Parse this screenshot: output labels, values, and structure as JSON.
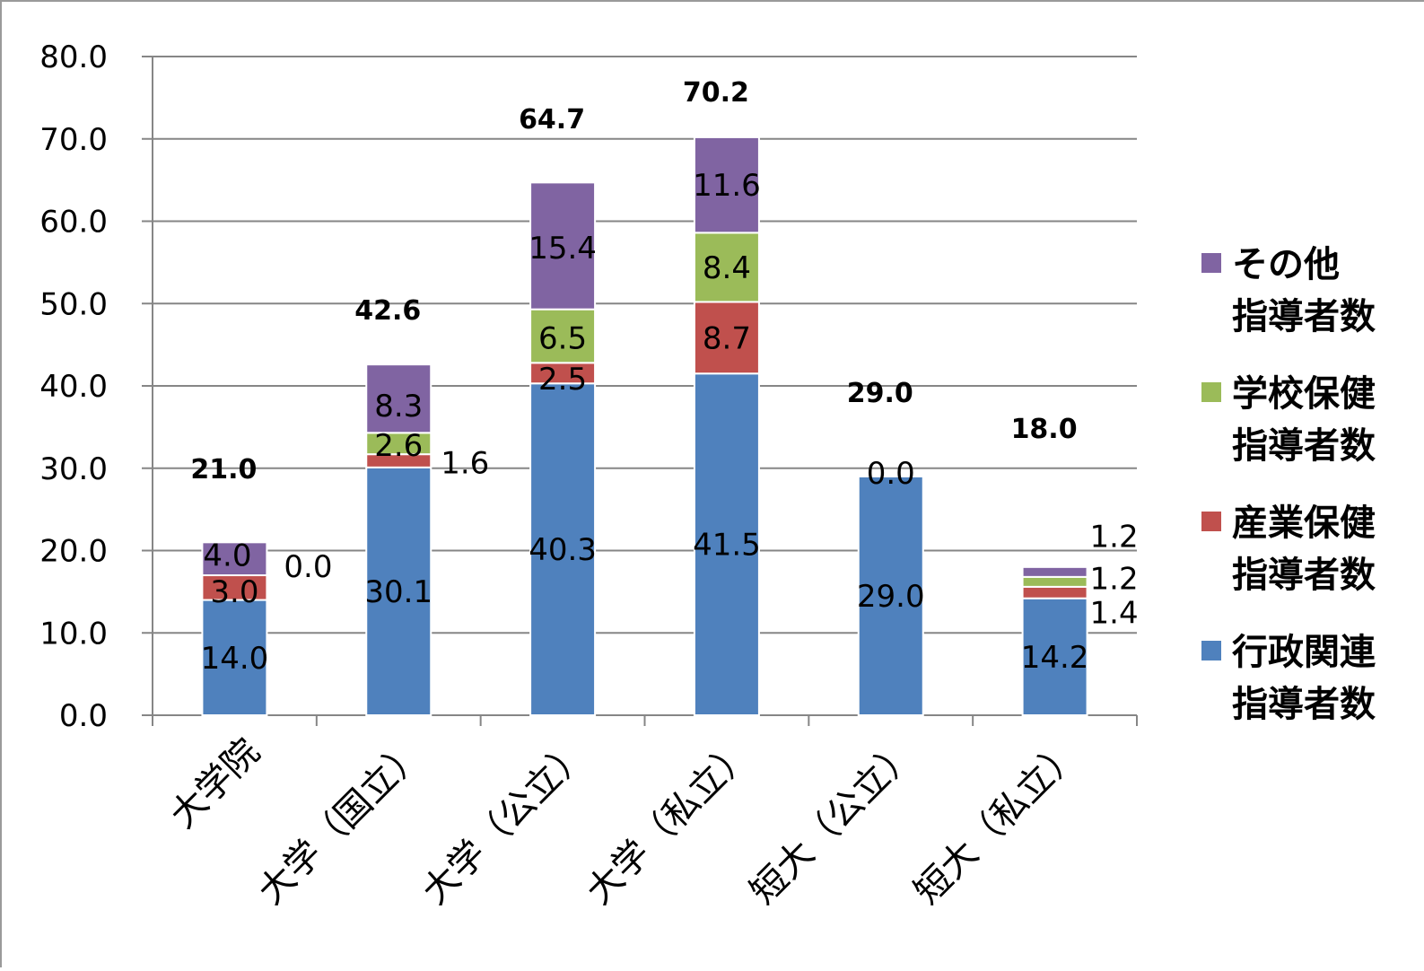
{
  "chart_data": {
    "type": "bar",
    "stacked": true,
    "categories": [
      "大学院",
      "大学（国立）",
      "大学（公立）",
      "大学（私立）",
      "短大（公立）",
      "短大（私立）"
    ],
    "series": [
      {
        "name": "行政関連指導者数",
        "legend_lines": [
          "行政関連",
          "指導者数"
        ],
        "color": "#4f81bd",
        "values": [
          14.0,
          30.1,
          40.3,
          41.5,
          29.0,
          14.2
        ],
        "labels": [
          "14.0",
          "30.1",
          "40.3",
          "41.5",
          "29.0",
          "14.2"
        ]
      },
      {
        "name": "産業保健指導者数",
        "legend_lines": [
          "産業保健",
          "指導者数"
        ],
        "color": "#c0504d",
        "values": [
          3.0,
          1.6,
          2.5,
          8.7,
          0.0,
          1.4
        ],
        "labels": [
          "3.0",
          "1.6",
          "2.5",
          "8.7",
          "",
          "1.4"
        ]
      },
      {
        "name": "学校保健指導者数",
        "legend_lines": [
          "学校保健",
          "指導者数"
        ],
        "color": "#9bbb59",
        "values": [
          0.0,
          2.6,
          6.5,
          8.4,
          0.0,
          1.2
        ],
        "labels": [
          "0.0",
          "2.6",
          "6.5",
          "8.4",
          "0.0",
          "1.2"
        ]
      },
      {
        "name": "その他指導者数",
        "legend_lines": [
          "その他",
          "指導者数"
        ],
        "color": "#8064a2",
        "values": [
          4.0,
          8.3,
          15.4,
          11.6,
          0.0,
          1.2
        ],
        "labels": [
          "4.0",
          "8.3",
          "15.4",
          "11.6",
          "",
          "1.2"
        ]
      }
    ],
    "totals": [
      "21.0",
      "42.6",
      "64.7",
      "70.2",
      "29.0",
      "18.0"
    ],
    "y_ticks": [
      "0.0",
      "10.0",
      "20.0",
      "30.0",
      "40.0",
      "50.0",
      "60.0",
      "70.0",
      "80.0"
    ],
    "ylim": [
      0,
      80
    ],
    "grid": true,
    "legend_position": "right",
    "title": "",
    "xlabel": "",
    "ylabel": ""
  }
}
